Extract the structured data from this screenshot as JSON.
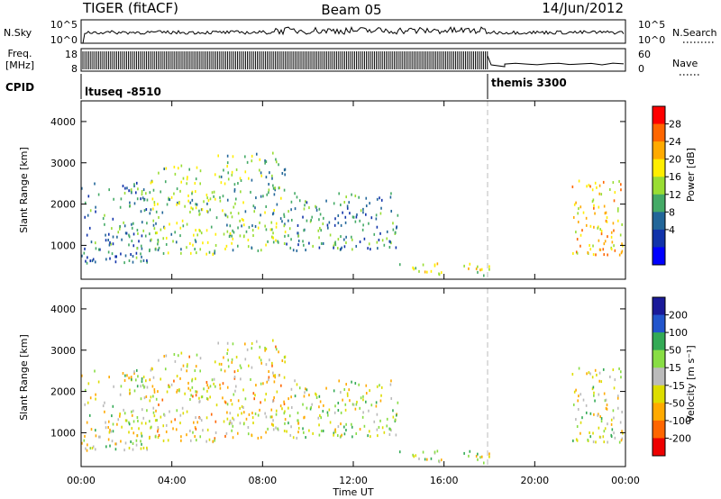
{
  "header": {
    "radar": "TIGER (fitACF)",
    "beam": "Beam 05",
    "date": "14/Jun/2012"
  },
  "top_panels": {
    "nsky_label": "N.Sky",
    "nsky_ticks": [
      "10^5",
      "10^0"
    ],
    "nsearch_label": "N.Search",
    "freq_label": "Freq.",
    "freq_unit": "[MHz]",
    "freq_ticks": [
      "18",
      "8"
    ],
    "nave_ticks": [
      "60",
      "0"
    ],
    "nave_label": "Nave",
    "cpid_label": "CPID",
    "cpid_modes": [
      "ltuseq -8510",
      "themis 3300"
    ]
  },
  "power_colorbar": {
    "label": "Power [dB]",
    "ticks": [
      "28",
      "24",
      "20",
      "16",
      "12",
      "8",
      "4"
    ],
    "colors": [
      "#ff0000",
      "#ff6600",
      "#ffaa00",
      "#ffee00",
      "#99dd33",
      "#44aa66",
      "#226699",
      "#1133aa",
      "#0000ff"
    ]
  },
  "velocity_colorbar": {
    "label": "Velocity [m s⁻¹]",
    "ticks": [
      "200",
      "100",
      "50",
      "15",
      "-15",
      "-50",
      "-100",
      "-200"
    ],
    "colors": [
      "#1a1a99",
      "#2255cc",
      "#33aa55",
      "#88dd44",
      "#bbbbbb",
      "#dddd00",
      "#ffaa00",
      "#ff6600",
      "#ee0000"
    ]
  },
  "chart_data": {
    "type": "heatmap",
    "title": "Beam 05",
    "xlabel": "Time UT",
    "ylabel": "Slant Range [km]",
    "x_ticks": [
      "00:00",
      "04:00",
      "08:00",
      "12:00",
      "16:00",
      "20:00",
      "00:00"
    ],
    "xlim_hours": [
      0,
      24
    ],
    "y_ticks": [
      "4000",
      "3000",
      "2000",
      "1000"
    ],
    "ylim_km": [
      180,
      4500
    ],
    "mode_change_hour": 18,
    "panels": [
      "Power [dB]",
      "Velocity [m s⁻¹]"
    ],
    "scatter_regions": [
      {
        "t": [
          0,
          3
        ],
        "r": [
          600,
          2600
        ],
        "power_db": 9,
        "velocity": -10
      },
      {
        "t": [
          3,
          6
        ],
        "r": [
          800,
          3000
        ],
        "power_db": 15,
        "velocity": -30
      },
      {
        "t": [
          6,
          9
        ],
        "r": [
          900,
          3300
        ],
        "power_db": 14,
        "velocity": -40
      },
      {
        "t": [
          9,
          14
        ],
        "r": [
          900,
          2300
        ],
        "power_db": 10,
        "velocity": 0
      },
      {
        "t": [
          14,
          18
        ],
        "r": [
          300,
          600
        ],
        "power_db": 17,
        "velocity": 10
      },
      {
        "t": [
          21.6,
          23.9
        ],
        "r": [
          800,
          2600
        ],
        "power_db": 22,
        "velocity": 0
      }
    ]
  }
}
